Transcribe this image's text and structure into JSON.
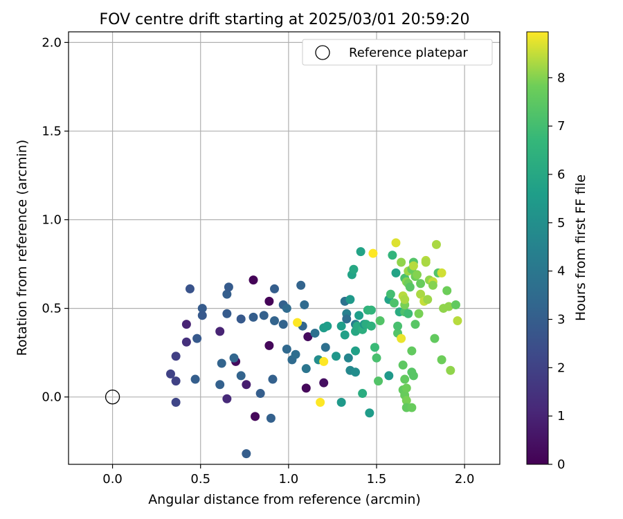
{
  "chart_data": {
    "type": "scatter",
    "title": "FOV centre drift starting at 2025/03/01 20:59:20",
    "xlabel": "Angular distance from reference (arcmin)",
    "ylabel": "Rotation from reference (arcmin)",
    "xlim": [
      -0.25,
      2.2
    ],
    "ylim": [
      -0.38,
      2.06
    ],
    "xticks": [
      0.0,
      0.5,
      1.0,
      1.5,
      2.0
    ],
    "xtick_labels": [
      "0.0",
      "0.5",
      "1.0",
      "1.5",
      "2.0"
    ],
    "yticks": [
      0.0,
      0.5,
      1.0,
      1.5,
      2.0
    ],
    "ytick_labels": [
      "0.0",
      "0.5",
      "1.0",
      "1.5",
      "2.0"
    ],
    "grid": true,
    "legend": {
      "position": "upper-right",
      "label": "Reference platepar"
    },
    "reference_point": {
      "x": 0.0,
      "y": 0.0
    },
    "colorbar": {
      "label": "Hours from first FF file",
      "min": 0,
      "max": 8.95,
      "ticks": [
        0,
        1,
        2,
        3,
        4,
        5,
        6,
        7,
        8
      ],
      "colormap": "viridis"
    },
    "points": [
      [
        0.8,
        0.66,
        0.1
      ],
      [
        0.89,
        0.54,
        0.1
      ],
      [
        0.89,
        0.29,
        0.2
      ],
      [
        0.7,
        0.2,
        0.3
      ],
      [
        0.81,
        -0.11,
        0.2
      ],
      [
        1.1,
        0.05,
        0.2
      ],
      [
        1.2,
        0.08,
        0.4
      ],
      [
        1.11,
        0.34,
        0.3
      ],
      [
        0.76,
        0.07,
        0.8
      ],
      [
        0.61,
        0.37,
        1.0
      ],
      [
        0.65,
        -0.01,
        1.2
      ],
      [
        0.42,
        0.41,
        1.0
      ],
      [
        0.42,
        0.31,
        1.4
      ],
      [
        0.36,
        0.23,
        1.9
      ],
      [
        0.33,
        0.13,
        2.0
      ],
      [
        0.36,
        0.09,
        2.0
      ],
      [
        0.36,
        -0.03,
        2.1
      ],
      [
        0.47,
        0.1,
        3.0
      ],
      [
        0.48,
        0.33,
        2.8
      ],
      [
        0.44,
        0.61,
        2.6
      ],
      [
        0.51,
        0.5,
        2.9
      ],
      [
        0.51,
        0.46,
        2.8
      ],
      [
        0.65,
        0.47,
        2.9
      ],
      [
        0.65,
        0.58,
        3.0
      ],
      [
        0.66,
        0.62,
        2.9
      ],
      [
        0.73,
        0.44,
        2.8
      ],
      [
        0.61,
        0.07,
        3.1
      ],
      [
        0.62,
        0.19,
        3.2
      ],
      [
        0.69,
        0.22,
        3.3
      ],
      [
        0.73,
        0.12,
        3.2
      ],
      [
        0.76,
        -0.32,
        3.0
      ],
      [
        0.8,
        0.45,
        3.0
      ],
      [
        0.86,
        0.46,
        3.1
      ],
      [
        0.84,
        0.02,
        3.0
      ],
      [
        0.9,
        -0.12,
        3.1
      ],
      [
        0.91,
        0.1,
        3.1
      ],
      [
        0.92,
        0.43,
        3.2
      ],
      [
        0.92,
        0.61,
        3.0
      ],
      [
        0.97,
        0.52,
        3.1
      ],
      [
        0.97,
        0.41,
        3.2
      ],
      [
        0.99,
        0.5,
        3.5
      ],
      [
        0.99,
        0.27,
        3.4
      ],
      [
        1.02,
        0.21,
        3.5
      ],
      [
        1.04,
        0.24,
        3.6
      ],
      [
        1.07,
        0.63,
        3.2
      ],
      [
        1.08,
        0.4,
        3.3
      ],
      [
        1.09,
        0.52,
        3.5
      ],
      [
        1.1,
        0.16,
        3.9
      ],
      [
        1.15,
        0.36,
        3.7
      ],
      [
        1.17,
        0.21,
        4.9
      ],
      [
        1.2,
        0.39,
        5.5
      ],
      [
        1.21,
        0.28,
        3.7
      ],
      [
        1.22,
        0.4,
        5.6
      ],
      [
        1.27,
        0.23,
        5.3
      ],
      [
        1.3,
        -0.03,
        5.4
      ],
      [
        1.3,
        0.4,
        5.6
      ],
      [
        1.32,
        0.35,
        5.7
      ],
      [
        1.32,
        0.54,
        3.8
      ],
      [
        1.33,
        0.47,
        4.4
      ],
      [
        1.33,
        0.44,
        3.6
      ],
      [
        1.34,
        0.22,
        4.6
      ],
      [
        1.35,
        0.55,
        5.4
      ],
      [
        1.35,
        0.15,
        4.7
      ],
      [
        1.36,
        0.69,
        5.8
      ],
      [
        1.37,
        0.72,
        6.0
      ],
      [
        1.38,
        0.41,
        4.3
      ],
      [
        1.38,
        0.37,
        6.0
      ],
      [
        1.38,
        0.26,
        5.7
      ],
      [
        1.38,
        0.14,
        4.9
      ],
      [
        1.39,
        0.4,
        6.1
      ],
      [
        1.4,
        0.46,
        5.6
      ],
      [
        1.41,
        0.82,
        5.8
      ],
      [
        1.42,
        0.38,
        6.3
      ],
      [
        1.42,
        0.02,
        6.2
      ],
      [
        1.43,
        0.41,
        5.3
      ],
      [
        1.44,
        0.41,
        6.2
      ],
      [
        1.45,
        0.49,
        6.5
      ],
      [
        1.46,
        -0.09,
        5.5
      ],
      [
        1.47,
        0.4,
        6.4
      ],
      [
        1.47,
        0.49,
        6.6
      ],
      [
        1.48,
        0.81,
        9.0
      ],
      [
        1.49,
        0.28,
        6.8
      ],
      [
        1.5,
        0.22,
        7.1
      ],
      [
        1.51,
        0.09,
        7.3
      ],
      [
        1.52,
        0.43,
        7.3
      ],
      [
        1.57,
        0.12,
        5.4
      ],
      [
        1.57,
        0.55,
        5.8
      ],
      [
        1.58,
        0.58,
        7.0
      ],
      [
        1.59,
        0.8,
        6.6
      ],
      [
        1.6,
        0.53,
        7.2
      ],
      [
        1.61,
        0.87,
        8.7
      ],
      [
        1.61,
        0.7,
        5.8
      ],
      [
        1.62,
        0.36,
        7.3
      ],
      [
        1.62,
        0.4,
        7.1
      ],
      [
        1.63,
        0.48,
        6.2
      ],
      [
        1.64,
        0.33,
        8.8
      ],
      [
        1.64,
        0.76,
        8.1
      ],
      [
        1.65,
        0.57,
        8.4
      ],
      [
        1.65,
        0.04,
        7.6
      ],
      [
        1.65,
        0.18,
        7.5
      ],
      [
        1.66,
        0.1,
        7.6
      ],
      [
        1.66,
        0.48,
        7.2
      ],
      [
        1.66,
        0.52,
        7.9
      ],
      [
        1.66,
        0.55,
        8.3
      ],
      [
        1.66,
        0.67,
        7.1
      ],
      [
        1.66,
        0.01,
        7.7
      ],
      [
        1.67,
        0.65,
        8.0
      ],
      [
        1.67,
        -0.02,
        7.9
      ],
      [
        1.67,
        -0.06,
        7.6
      ],
      [
        1.67,
        0.05,
        7.8
      ],
      [
        1.68,
        0.71,
        8.2
      ],
      [
        1.68,
        0.64,
        7.8
      ],
      [
        1.68,
        0.47,
        6.9
      ],
      [
        1.69,
        0.62,
        7.4
      ],
      [
        1.7,
        0.72,
        7.7
      ],
      [
        1.7,
        0.26,
        7.6
      ],
      [
        1.7,
        0.14,
        7.4
      ],
      [
        1.7,
        -0.06,
        7.7
      ],
      [
        1.71,
        0.76,
        7.3
      ],
      [
        1.71,
        0.74,
        8.4
      ],
      [
        1.71,
        0.12,
        7.4
      ],
      [
        1.72,
        0.68,
        7.8
      ],
      [
        1.72,
        0.41,
        7.4
      ],
      [
        1.73,
        0.69,
        8.0
      ],
      [
        1.74,
        0.47,
        7.9
      ],
      [
        1.75,
        0.64,
        7.7
      ],
      [
        1.75,
        0.58,
        8.3
      ],
      [
        1.77,
        0.54,
        8.5
      ],
      [
        1.78,
        0.77,
        8.4
      ],
      [
        1.78,
        0.76,
        8.3
      ],
      [
        1.79,
        0.55,
        8.2
      ],
      [
        1.8,
        0.66,
        8.1
      ],
      [
        1.82,
        0.65,
        8.5
      ],
      [
        1.82,
        0.63,
        8.0
      ],
      [
        1.83,
        0.33,
        7.6
      ],
      [
        1.84,
        0.86,
        8.3
      ],
      [
        1.85,
        0.7,
        7.3
      ],
      [
        1.87,
        0.7,
        8.6
      ],
      [
        1.87,
        0.21,
        7.8
      ],
      [
        1.88,
        0.5,
        8.1
      ],
      [
        1.9,
        0.6,
        7.8
      ],
      [
        1.91,
        0.51,
        8.1
      ],
      [
        1.92,
        0.15,
        8.1
      ],
      [
        1.95,
        0.52,
        7.6
      ],
      [
        1.96,
        0.43,
        8.4
      ],
      [
        1.05,
        0.42,
        9.0
      ],
      [
        1.18,
        -0.03,
        9.0
      ],
      [
        1.2,
        0.2,
        9.0
      ]
    ]
  }
}
